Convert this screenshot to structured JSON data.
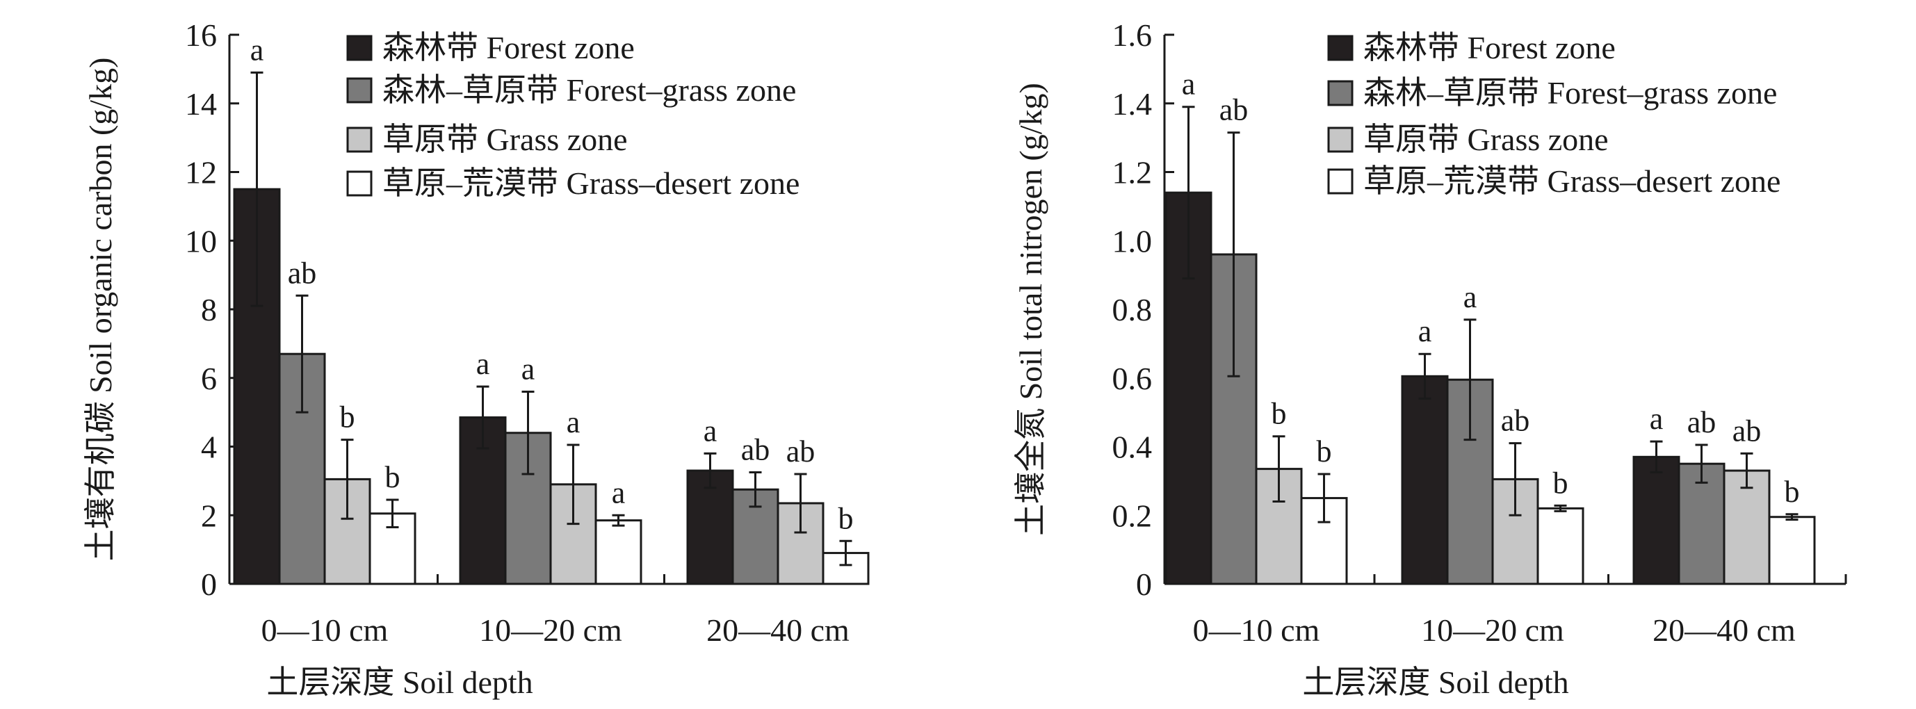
{
  "colors": {
    "forest": "#231f20",
    "forest_grass": "#7a7a7a",
    "grass": "#c6c6c6",
    "grass_desert": "#ffffff",
    "axis": "#1a1a1a"
  },
  "chart_data": [
    {
      "type": "bar",
      "title": "",
      "xlabel": "土层深度 Soil depth",
      "ylabel": "土壤有机碳 Soil organic carbon (g/kg)",
      "ylim": [
        0,
        16
      ],
      "yticks": [
        "0",
        "2",
        "4",
        "6",
        "8",
        "10",
        "12",
        "14",
        "16"
      ],
      "ytick_values": [
        0,
        2,
        4,
        6,
        8,
        10,
        12,
        14,
        16
      ],
      "categories": [
        "0—10 cm",
        "10—20 cm",
        "20—40 cm"
      ],
      "legend_position": "top-right",
      "series": [
        {
          "name": "森林带 Forest zone",
          "values": [
            11.5,
            4.85,
            3.3
          ],
          "errors": [
            3.4,
            0.9,
            0.5
          ],
          "letters": [
            "a",
            "a",
            "a"
          ]
        },
        {
          "name": "森林–草原带 Forest–grass zone",
          "values": [
            6.7,
            4.4,
            2.75
          ],
          "errors": [
            1.7,
            1.2,
            0.5
          ],
          "letters": [
            "ab",
            "a",
            "ab"
          ]
        },
        {
          "name": "草原带 Grass zone",
          "values": [
            3.05,
            2.9,
            2.35
          ],
          "errors": [
            1.15,
            1.15,
            0.85
          ],
          "letters": [
            "b",
            "a",
            "ab"
          ]
        },
        {
          "name": "草原–荒漠带 Grass–desert zone",
          "values": [
            2.05,
            1.85,
            0.9
          ],
          "errors": [
            0.4,
            0.15,
            0.35
          ],
          "letters": [
            "b",
            "a",
            "b"
          ]
        }
      ]
    },
    {
      "type": "bar",
      "title": "",
      "xlabel": "土层深度 Soil depth",
      "ylabel": "土壤全氮 Soil total nitrogen (g/kg)",
      "ylim": [
        0,
        1.6
      ],
      "yticks": [
        "0",
        "0.2",
        "0.4",
        "0.6",
        "0.8",
        "1.0",
        "1.2",
        "1.4",
        "1.6"
      ],
      "ytick_values": [
        0,
        0.2,
        0.4,
        0.6,
        0.8,
        1.0,
        1.2,
        1.4,
        1.6
      ],
      "categories": [
        "0—10 cm",
        "10—20 cm",
        "20—40 cm"
      ],
      "legend_position": "top-right",
      "series": [
        {
          "name": "森林带 Forest zone",
          "values": [
            1.14,
            0.605,
            0.37
          ],
          "errors": [
            0.25,
            0.065,
            0.045
          ],
          "letters": [
            "a",
            "a",
            "a"
          ]
        },
        {
          "name": "森林–草原带 Forest–grass zone",
          "values": [
            0.96,
            0.595,
            0.35
          ],
          "errors": [
            0.355,
            0.175,
            0.055
          ],
          "letters": [
            "ab",
            "a",
            "ab"
          ]
        },
        {
          "name": "草原带 Grass zone",
          "values": [
            0.335,
            0.305,
            0.33
          ],
          "errors": [
            0.095,
            0.105,
            0.05
          ],
          "letters": [
            "b",
            "ab",
            "ab"
          ]
        },
        {
          "name": "草原–荒漠带 Grass–desert zone",
          "values": [
            0.25,
            0.22,
            0.195
          ],
          "errors": [
            0.07,
            0.008,
            0.008
          ],
          "letters": [
            "b",
            "b",
            "b"
          ]
        }
      ]
    }
  ]
}
